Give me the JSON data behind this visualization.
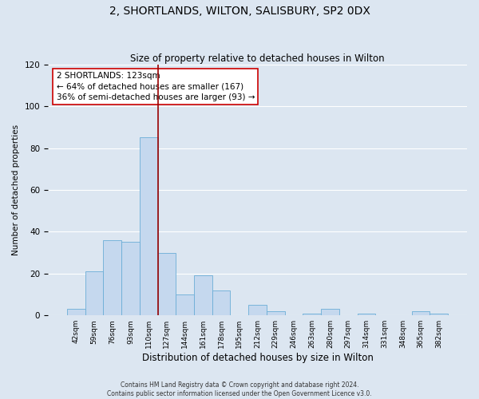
{
  "title": "2, SHORTLANDS, WILTON, SALISBURY, SP2 0DX",
  "subtitle": "Size of property relative to detached houses in Wilton",
  "xlabel": "Distribution of detached houses by size in Wilton",
  "ylabel": "Number of detached properties",
  "bar_labels": [
    "42sqm",
    "59sqm",
    "76sqm",
    "93sqm",
    "110sqm",
    "127sqm",
    "144sqm",
    "161sqm",
    "178sqm",
    "195sqm",
    "212sqm",
    "229sqm",
    "246sqm",
    "263sqm",
    "280sqm",
    "297sqm",
    "314sqm",
    "331sqm",
    "348sqm",
    "365sqm",
    "382sqm"
  ],
  "bar_values": [
    3,
    21,
    36,
    35,
    85,
    30,
    10,
    19,
    12,
    0,
    5,
    2,
    0,
    1,
    3,
    0,
    1,
    0,
    0,
    2,
    1
  ],
  "bar_color": "#c5d8ee",
  "bar_edge_color": "#6baed6",
  "bar_width": 1.0,
  "vline_x": 4.5,
  "vline_color": "#990000",
  "annotation_text": "2 SHORTLANDS: 123sqm\n← 64% of detached houses are smaller (167)\n36% of semi-detached houses are larger (93) →",
  "annotation_box_color": "#ffffff",
  "annotation_box_edge": "#cc0000",
  "annotation_fontsize": 7.5,
  "ylim": [
    0,
    120
  ],
  "yticks": [
    0,
    20,
    40,
    60,
    80,
    100,
    120
  ],
  "title_fontsize": 10,
  "subtitle_fontsize": 8.5,
  "xlabel_fontsize": 8.5,
  "ylabel_fontsize": 7.5,
  "footer_line1": "Contains HM Land Registry data © Crown copyright and database right 2024.",
  "footer_line2": "Contains public sector information licensed under the Open Government Licence v3.0.",
  "bg_color": "#dce6f1",
  "plot_bg_color": "#dce6f1",
  "grid_color": "#ffffff"
}
